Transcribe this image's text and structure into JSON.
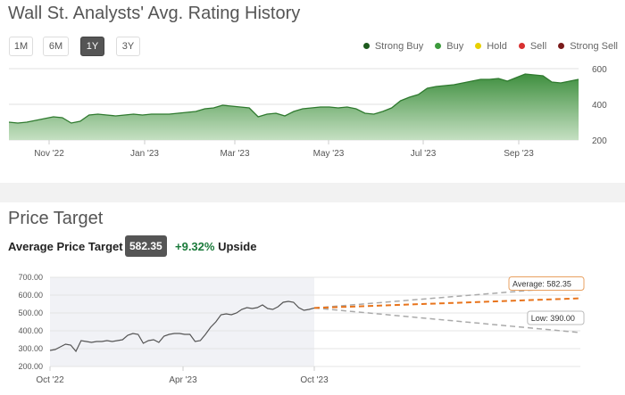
{
  "rating_section": {
    "title": "Wall St. Analysts' Avg. Rating History",
    "ranges": [
      "1M",
      "6M",
      "1Y",
      "3Y"
    ],
    "active_range": "1Y",
    "legend": [
      {
        "label": "Strong Buy",
        "color": "#1e5a1e"
      },
      {
        "label": "Buy",
        "color": "#3c9a3c"
      },
      {
        "label": "Hold",
        "color": "#e8d000"
      },
      {
        "label": "Sell",
        "color": "#d83030"
      },
      {
        "label": "Strong Sell",
        "color": "#7a1a1a"
      }
    ]
  },
  "price_section": {
    "title": "Price Target",
    "avg_label": "Average Price Target",
    "avg_value": "582.35",
    "upside_pct": "+9.32%",
    "upside_label": "Upside",
    "tooltip_avg": "Average: 582.35",
    "tooltip_low": "Low: 390.00"
  },
  "chart_data": [
    {
      "type": "area",
      "title": "Wall St. Analysts' Avg. Rating History",
      "x_ticks": [
        "Nov '22",
        "Jan '23",
        "Mar '23",
        "May '23",
        "Jul '23",
        "Sep '23"
      ],
      "y_ticks": [
        200,
        400,
        600
      ],
      "ylim": [
        200,
        600
      ],
      "values": [
        300,
        295,
        300,
        310,
        320,
        330,
        325,
        295,
        305,
        340,
        345,
        340,
        335,
        340,
        345,
        340,
        345,
        345,
        345,
        350,
        355,
        360,
        375,
        380,
        395,
        390,
        385,
        380,
        330,
        345,
        350,
        335,
        360,
        375,
        380,
        385,
        385,
        380,
        385,
        375,
        350,
        345,
        360,
        380,
        420,
        440,
        455,
        490,
        500,
        505,
        510,
        520,
        530,
        540,
        540,
        545,
        530,
        550,
        570,
        565,
        560,
        525,
        520,
        530,
        540
      ]
    },
    {
      "type": "line",
      "title": "Price Target",
      "x_ticks": [
        "Oct '22",
        "Apr '23",
        "Oct '23"
      ],
      "y_ticks": [
        "200.00",
        "300.00",
        "400.00",
        "500.00",
        "600.00",
        "700.00"
      ],
      "ylim": [
        200,
        700
      ],
      "values": [
        290,
        295,
        310,
        325,
        320,
        285,
        345,
        340,
        335,
        340,
        340,
        345,
        340,
        345,
        350,
        375,
        385,
        380,
        330,
        345,
        350,
        335,
        370,
        380,
        385,
        385,
        380,
        380,
        340,
        345,
        380,
        420,
        450,
        490,
        495,
        490,
        500,
        520,
        530,
        525,
        530,
        545,
        525,
        520,
        535,
        560,
        565,
        560,
        530,
        515,
        520,
        528
      ],
      "forecast": {
        "start": 528,
        "average": 582.35,
        "high": 650,
        "low": 390
      }
    }
  ]
}
